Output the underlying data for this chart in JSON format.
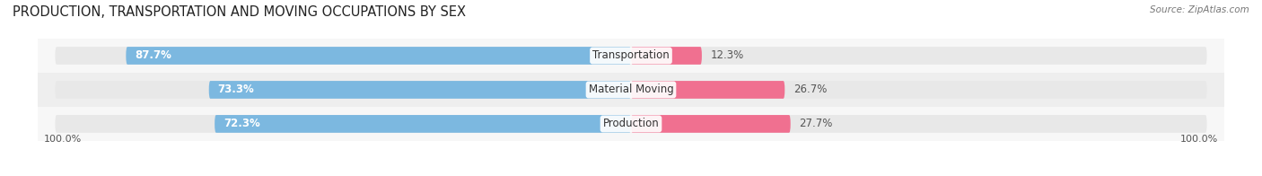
{
  "title": "PRODUCTION, TRANSPORTATION AND MOVING OCCUPATIONS BY SEX",
  "source": "Source: ZipAtlas.com",
  "categories": [
    "Transportation",
    "Material Moving",
    "Production"
  ],
  "male_values": [
    87.7,
    73.3,
    72.3
  ],
  "female_values": [
    12.3,
    26.7,
    27.7
  ],
  "male_color": "#7cb8e0",
  "female_color": "#f07090",
  "track_color": "#e8e8e8",
  "row_bg_even": "#f7f7f7",
  "row_bg_odd": "#eeeeee",
  "label_color_male": "#ffffff",
  "label_color_female": "#555555",
  "center_label_color": "#333333",
  "title_fontsize": 10.5,
  "label_fontsize": 8.5,
  "tick_fontsize": 8,
  "legend_fontsize": 8.5,
  "background_color": "#ffffff",
  "xlim_left": -103,
  "xlim_right": 103
}
